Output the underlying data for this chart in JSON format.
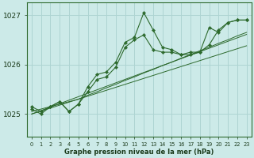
{
  "title": "Graphe pression niveau de la mer (hPa)",
  "background_color": "#cceae8",
  "grid_color": "#aed4d2",
  "line_color": "#2d6a2d",
  "marker_color": "#2d6a2d",
  "xlim": [
    -0.5,
    23.5
  ],
  "ylim": [
    1024.55,
    1027.25
  ],
  "yticks": [
    1025,
    1026,
    1027
  ],
  "ytick_labels": [
    "1025",
    "1026",
    "1027"
  ],
  "xtick_labels": [
    "0",
    "1",
    "2",
    "3",
    "4",
    "5",
    "6",
    "7",
    "8",
    "9",
    "10",
    "11",
    "12",
    "13",
    "14",
    "15",
    "16",
    "17",
    "18",
    "19",
    "20",
    "21",
    "22",
    "23"
  ],
  "series_jagged": [
    [
      1025.15,
      1025.05,
      1025.15,
      1025.25,
      1025.05,
      1025.2,
      1025.55,
      1025.8,
      1025.85,
      1026.05,
      1026.45,
      1026.55,
      1027.05,
      1026.7,
      1026.35,
      1026.3,
      1026.2,
      1026.25,
      1026.25,
      1026.75,
      1026.65,
      1026.85,
      1026.9,
      1026.9
    ],
    [
      1025.1,
      1025.0,
      1025.15,
      1025.25,
      1025.05,
      1025.2,
      1025.45,
      1025.7,
      1025.75,
      1025.95,
      1026.35,
      1026.5,
      1026.6,
      1026.3,
      1026.25,
      1026.25,
      1026.2,
      1026.2,
      1026.25,
      1026.4,
      1026.7,
      1026.85,
      1026.9,
      1026.9
    ]
  ],
  "series_straight": [
    [
      1025.05,
      1025.1,
      1025.15,
      1025.2,
      1025.25,
      1025.3,
      1025.38,
      1025.45,
      1025.53,
      1025.6,
      1025.68,
      1025.75,
      1025.83,
      1025.9,
      1025.98,
      1026.05,
      1026.13,
      1026.2,
      1026.28,
      1026.35,
      1026.43,
      1026.5,
      1026.58,
      1026.65
    ],
    [
      1025.0,
      1025.06,
      1025.12,
      1025.18,
      1025.24,
      1025.3,
      1025.36,
      1025.42,
      1025.48,
      1025.54,
      1025.6,
      1025.66,
      1025.72,
      1025.78,
      1025.84,
      1025.9,
      1025.96,
      1026.02,
      1026.08,
      1026.14,
      1026.2,
      1026.26,
      1026.32,
      1026.38
    ],
    [
      1025.0,
      1025.07,
      1025.14,
      1025.21,
      1025.28,
      1025.35,
      1025.42,
      1025.49,
      1025.56,
      1025.63,
      1025.7,
      1025.77,
      1025.84,
      1025.91,
      1025.98,
      1026.05,
      1026.12,
      1026.19,
      1026.26,
      1026.33,
      1026.4,
      1026.47,
      1026.54,
      1026.61
    ]
  ]
}
